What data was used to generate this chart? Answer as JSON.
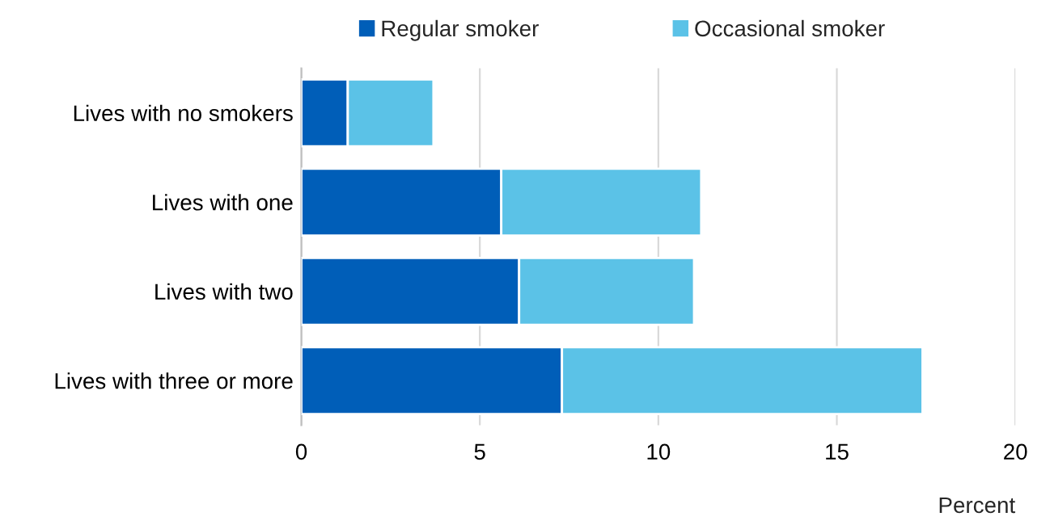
{
  "chart_data": {
    "type": "bar",
    "orientation": "horizontal",
    "stacked": true,
    "xlabel": "Percent",
    "categories": [
      "Lives with no smokers",
      "Lives with one",
      "Lives with two",
      "Lives with three or more"
    ],
    "series": [
      {
        "name": "Regular smoker",
        "color": "#005eb8",
        "values": [
          1.3,
          5.6,
          6.1,
          7.3
        ]
      },
      {
        "name": "Occasional smoker",
        "color": "#5bc2e7",
        "values": [
          2.4,
          5.6,
          4.9,
          10.1
        ]
      }
    ],
    "xlim": [
      0,
      20
    ],
    "xticks": [
      0,
      5,
      10,
      15,
      20
    ],
    "grid": "x",
    "legend": "top"
  }
}
